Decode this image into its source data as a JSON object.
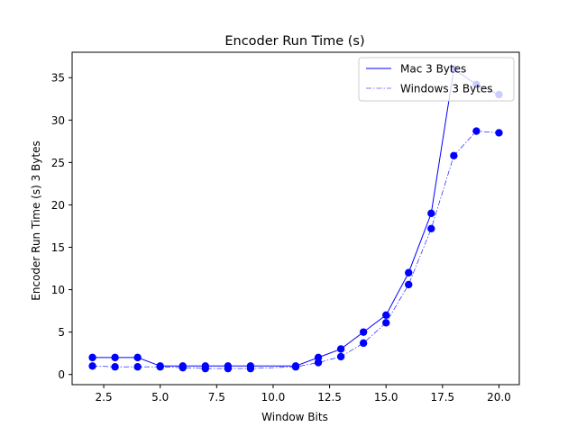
{
  "chart_data": {
    "type": "line",
    "title": "Encoder Run Time (s)",
    "xlabel": "Window Bits",
    "ylabel": "Encoder Run Time (s) 3 Bytes",
    "xlim": [
      1.1,
      20.9
    ],
    "ylim": [
      -1.2,
      38.0
    ],
    "xticks": [
      2.5,
      5.0,
      7.5,
      10.0,
      12.5,
      15.0,
      17.5,
      20.0
    ],
    "xtick_labels": [
      "2.5",
      "5.0",
      "7.5",
      "10.0",
      "12.5",
      "15.0",
      "17.5",
      "20.0"
    ],
    "yticks": [
      0,
      5,
      10,
      15,
      20,
      25,
      30,
      35
    ],
    "ytick_labels": [
      "0",
      "5",
      "10",
      "15",
      "20",
      "25",
      "30",
      "35"
    ],
    "grid": false,
    "legend_position": "top-right",
    "series": [
      {
        "name": "Mac 3 Bytes",
        "color": "#0000ff",
        "linestyle": "solid",
        "x": [
          2,
          3,
          4,
          5,
          6,
          7,
          8,
          9,
          11,
          12,
          13,
          14,
          15,
          16,
          17,
          18,
          19,
          20
        ],
        "y": [
          2.0,
          2.0,
          2.0,
          1.0,
          1.0,
          1.0,
          1.0,
          1.0,
          1.0,
          2.0,
          3.0,
          5.0,
          7.0,
          12.0,
          19.0,
          36.0,
          34.2,
          33.0
        ]
      },
      {
        "name": "Windows 3 Bytes",
        "color": "#0000ff",
        "linestyle": "dashdot",
        "x": [
          2,
          3,
          4,
          5,
          6,
          7,
          8,
          9,
          11,
          12,
          13,
          14,
          15,
          16,
          17,
          18,
          19,
          20
        ],
        "y": [
          1.0,
          0.9,
          0.9,
          0.9,
          0.8,
          0.7,
          0.7,
          0.7,
          0.9,
          1.4,
          2.1,
          3.7,
          6.1,
          10.6,
          17.2,
          25.8,
          28.7,
          28.5
        ]
      }
    ]
  }
}
